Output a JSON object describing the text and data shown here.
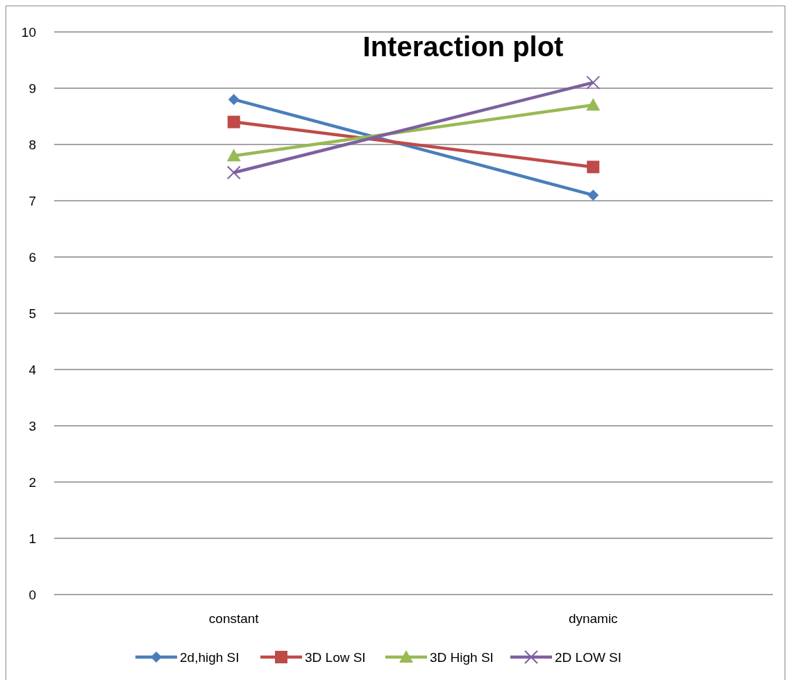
{
  "chart_data": {
    "type": "line",
    "title": "Interaction plot",
    "categories": [
      "constant",
      "dynamic"
    ],
    "series": [
      {
        "name": "2d,high SI",
        "color": "#4a7ebb",
        "marker": "diamond",
        "values": [
          8.8,
          7.1
        ]
      },
      {
        "name": "3D Low SI",
        "color": "#be4b48",
        "marker": "square",
        "values": [
          8.4,
          7.6
        ]
      },
      {
        "name": "3D High SI",
        "color": "#98b954",
        "marker": "triangle",
        "values": [
          7.8,
          8.7
        ]
      },
      {
        "name": "2D LOW SI",
        "color": "#7d60a0",
        "marker": "cross",
        "values": [
          7.5,
          9.1
        ]
      }
    ],
    "ylim": [
      0,
      10
    ],
    "yticks": [
      0,
      1,
      2,
      3,
      4,
      5,
      6,
      7,
      8,
      9,
      10
    ],
    "grid": "y",
    "legend": "bottom",
    "line_style": "solid"
  }
}
